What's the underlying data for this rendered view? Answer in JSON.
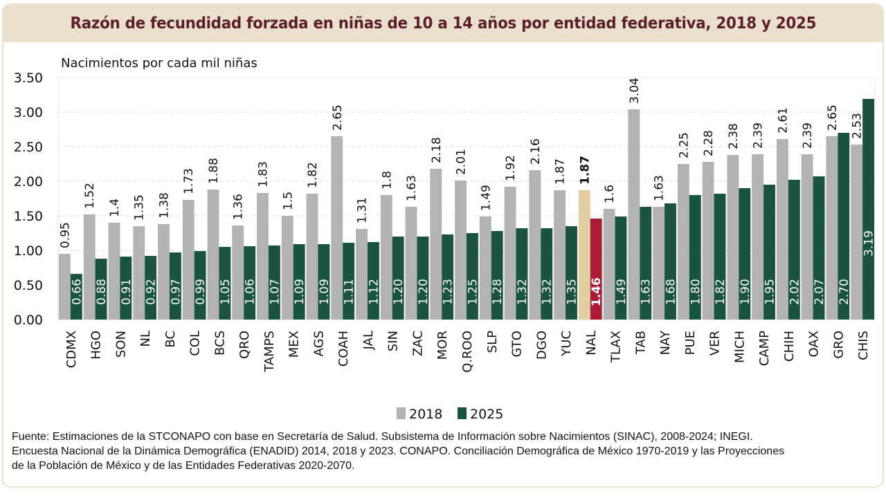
{
  "chart_data": {
    "type": "bar",
    "title": "Razón de fecundidad forzada en niñas de 10 a 14 años por entidad federativa, 2018 y 2025",
    "ylabel": "Nacimientos por cada mil niñas",
    "xlabel": "",
    "ylim": [
      0,
      3.5
    ],
    "yticks": [
      "0.00",
      "0.50",
      "1.00",
      "1.50",
      "2.00",
      "2.50",
      "3.00",
      "3.50"
    ],
    "ytick_values": [
      0,
      0.5,
      1.0,
      1.5,
      2.0,
      2.5,
      3.0,
      3.5
    ],
    "grid": true,
    "legend_position": "bottom-center",
    "categories": [
      "CDMX",
      "HGO",
      "SON",
      "NL",
      "BC",
      "COL",
      "BCS",
      "QRO",
      "TAMPS",
      "MEX",
      "AGS",
      "COAH",
      "JAL",
      "SIN",
      "ZAC",
      "MOR",
      "Q.ROO",
      "SLP",
      "GTO",
      "DGO",
      "YUC",
      "NAL",
      "TLAX",
      "TAB",
      "NAY",
      "PUE",
      "VER",
      "MICH",
      "CAMP",
      "CHIH",
      "OAX",
      "GRO",
      "CHIS"
    ],
    "highlight_category": "NAL",
    "series": [
      {
        "name": "2018",
        "color": "#b3b3b3",
        "highlight_color": "#e3cda4",
        "values": [
          0.95,
          1.52,
          1.4,
          1.35,
          1.38,
          1.73,
          1.88,
          1.36,
          1.83,
          1.5,
          1.82,
          2.65,
          1.31,
          1.8,
          1.63,
          2.18,
          2.01,
          1.49,
          1.92,
          2.16,
          1.87,
          1.87,
          1.6,
          3.04,
          1.63,
          2.25,
          2.28,
          2.38,
          2.39,
          2.61,
          2.39,
          2.65,
          2.53
        ],
        "labels": [
          "0.95",
          "1.52",
          "1.4",
          "1.35",
          "1.38",
          "1.73",
          "1.88",
          "1.36",
          "1.83",
          "1.5",
          "1.82",
          "2.65",
          "1.31",
          "1.8",
          "1.63",
          "2.18",
          "2.01",
          "1.49",
          "1.92",
          "2.16",
          "1.87",
          "1.87",
          "1.6",
          "3.04",
          "1.63",
          "2.25",
          "2.28",
          "2.38",
          "2.39",
          "2.61",
          "2.39",
          "2.65",
          "2.53"
        ]
      },
      {
        "name": "2025",
        "color": "#1b5343",
        "highlight_color": "#a81c35",
        "values": [
          0.66,
          0.88,
          0.91,
          0.92,
          0.97,
          0.99,
          1.05,
          1.06,
          1.07,
          1.09,
          1.09,
          1.11,
          1.12,
          1.2,
          1.2,
          1.23,
          1.25,
          1.28,
          1.32,
          1.32,
          1.35,
          1.46,
          1.49,
          1.63,
          1.68,
          1.8,
          1.82,
          1.9,
          1.95,
          2.02,
          2.07,
          2.7,
          3.19
        ],
        "labels": [
          "0.66",
          "0.88",
          "0.91",
          "0.92",
          "0.97",
          "0.99",
          "1.05",
          "1.06",
          "1.07",
          "1.09",
          "1.09",
          "1.11",
          "1.12",
          "1.20",
          "1.20",
          "1.23",
          "1.25",
          "1.28",
          "1.32",
          "1.32",
          "1.35",
          "1.46",
          "1.49",
          "1.63",
          "1.68",
          "1.80",
          "1.82",
          "1.90",
          "1.95",
          "2.02",
          "2.07",
          "2.70",
          "3.19"
        ]
      }
    ]
  },
  "header": {
    "title": "Razón de fecundidad forzada en niñas de 10 a 14 años por entidad federativa, 2018 y 2025"
  },
  "legend": {
    "items": [
      {
        "label": "2018",
        "color": "#b3b3b3"
      },
      {
        "label": "2025",
        "color": "#1b5343"
      }
    ]
  },
  "footer": {
    "source_lines": [
      "Fuente: Estimaciones de la STCONAPO con base en Secretaría de Salud. Subsistema de Información sobre Nacimientos (SINAC), 2008-2024; INEGI.",
      "Encuesta Nacional de la Dinámica Demográfica (ENADID) 2014, 2018 y 2023. CONAPO. Conciliación Demográfica de México 1970-2019 y las Proyecciones",
      "de la Población de México y de las Entidades Federativas 2020-2070."
    ]
  }
}
